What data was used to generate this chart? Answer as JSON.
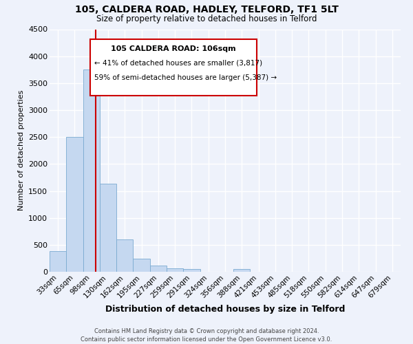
{
  "title": "105, CALDERA ROAD, HADLEY, TELFORD, TF1 5LT",
  "subtitle": "Size of property relative to detached houses in Telford",
  "xlabel": "Distribution of detached houses by size in Telford",
  "ylabel": "Number of detached properties",
  "categories": [
    "33sqm",
    "65sqm",
    "98sqm",
    "130sqm",
    "162sqm",
    "195sqm",
    "227sqm",
    "259sqm",
    "291sqm",
    "324sqm",
    "356sqm",
    "388sqm",
    "421sqm",
    "453sqm",
    "485sqm",
    "518sqm",
    "550sqm",
    "582sqm",
    "614sqm",
    "647sqm",
    "679sqm"
  ],
  "bar_values": [
    380,
    2500,
    3750,
    1640,
    600,
    240,
    110,
    60,
    45,
    0,
    0,
    50,
    0,
    0,
    0,
    0,
    0,
    0,
    0,
    0,
    0
  ],
  "bar_color": "#c5d8f0",
  "bar_edge_color": "#7aaad0",
  "property_line_color": "#cc0000",
  "ylim": [
    0,
    4500
  ],
  "yticks": [
    0,
    500,
    1000,
    1500,
    2000,
    2500,
    3000,
    3500,
    4000,
    4500
  ],
  "annotation_title": "105 CALDERA ROAD: 106sqm",
  "annotation_line1": "← 41% of detached houses are smaller (3,817)",
  "annotation_line2": "59% of semi-detached houses are larger (5,387) →",
  "annotation_box_edge": "#cc0000",
  "footer_line1": "Contains HM Land Registry data © Crown copyright and database right 2024.",
  "footer_line2": "Contains public sector information licensed under the Open Government Licence v3.0.",
  "bg_color": "#eef2fb",
  "grid_color": "#ffffff"
}
